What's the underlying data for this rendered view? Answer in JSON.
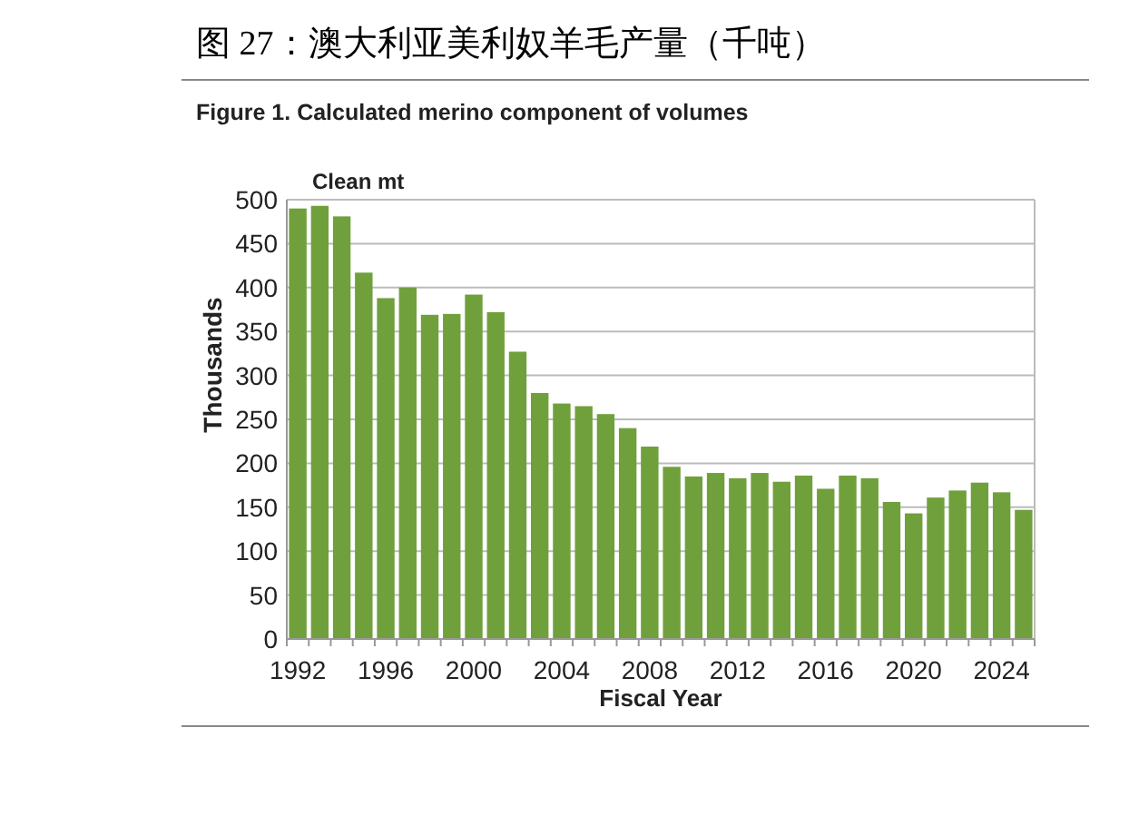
{
  "chart_data": {
    "type": "bar",
    "title": "图 27：澳大利亚美利奴羊毛产量（千吨）",
    "subtitle": "Figure 1. Calculated merino component of volumes",
    "ylabel": "Thousands",
    "xlabel": "Fiscal Year",
    "annotations": [
      "Clean mt"
    ],
    "categories": [
      "1992",
      null,
      null,
      null,
      "1996",
      null,
      null,
      null,
      "2000",
      null,
      null,
      null,
      "2004",
      null,
      null,
      null,
      "2008",
      null,
      null,
      null,
      "2012",
      null,
      null,
      null,
      "2016",
      null,
      null,
      null,
      "2020",
      null,
      null,
      null,
      "2024",
      null
    ],
    "series": [
      {
        "color": "#70a03c",
        "values": [
          490,
          493,
          481,
          417,
          388,
          400,
          369,
          370,
          392,
          372,
          327,
          280,
          268,
          265,
          256,
          240,
          219,
          196,
          185,
          189,
          183,
          189,
          179,
          186,
          171,
          186,
          183,
          156,
          143,
          161,
          169,
          178,
          167,
          147
        ]
      }
    ],
    "ylim": [
      0,
      500
    ],
    "yticks": [
      0,
      50,
      100,
      150,
      200,
      250,
      300,
      350,
      400,
      450,
      500
    ],
    "grid": "y"
  }
}
